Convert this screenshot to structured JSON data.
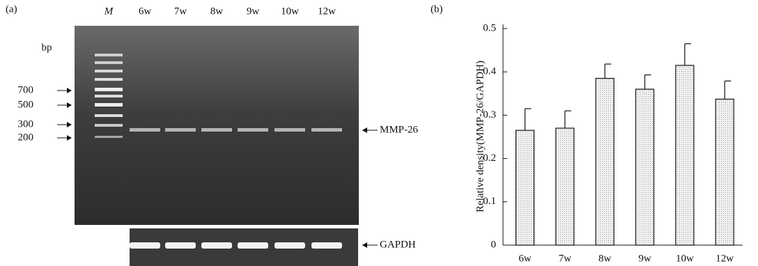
{
  "panel_a": {
    "label": "(a)",
    "marker_lane": "M",
    "lanes": [
      "6w",
      "7w",
      "8w",
      "9w",
      "10w",
      "12w"
    ],
    "unit": "bp",
    "marker_sizes": [
      "700",
      "500",
      "300",
      "200"
    ],
    "target_band": "MMP-26",
    "control_band": "GAPDH"
  },
  "panel_b_label": "(b)",
  "chart_data": {
    "type": "bar",
    "y_label": "Relative density(MMP-26/GAPDH)",
    "categories": [
      "6w",
      "7w",
      "8w",
      "9w",
      "10w",
      "12w"
    ],
    "series": [
      {
        "values": [
          0.265,
          0.27,
          0.385,
          0.36,
          0.415,
          0.337
        ],
        "errors": [
          0.05,
          0.04,
          0.033,
          0.033,
          0.05,
          0.042
        ],
        "color": "#dcdcdc"
      }
    ],
    "ylim": [
      0,
      0.5
    ],
    "yticks": [
      0,
      0.1,
      0.2,
      0.3,
      0.4,
      0.5
    ],
    "grid": false
  }
}
